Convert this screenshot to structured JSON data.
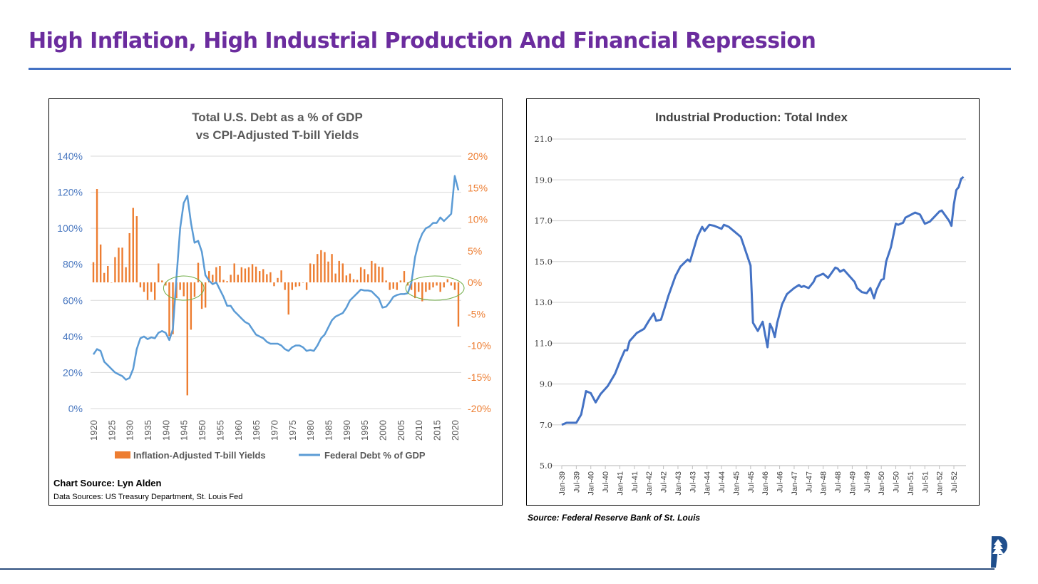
{
  "page": {
    "title": "High Inflation, High Industrial Production And Financial Repression",
    "source": "Source: Federal Reserve Bank of St. Louis",
    "logo_text": "P"
  },
  "colors": {
    "title": "#6b2c9e",
    "accent": "#4472c4",
    "bar": "#ed7d31",
    "debt_line": "#5b9bd5",
    "ip_line": "#4472c4",
    "ellipse": "#70ad47"
  },
  "chart_data": [
    {
      "type": "bar+line",
      "title": "Total U.S. Debt as a % of GDP",
      "subtitle": "vs CPI-Adjusted T-bill Yields",
      "left_axis": {
        "ticks": [
          "0%",
          "20%",
          "40%",
          "60%",
          "80%",
          "100%",
          "120%",
          "140%"
        ],
        "range": [
          0,
          140
        ]
      },
      "right_axis": {
        "ticks": [
          "-20%",
          "-15%",
          "-10%",
          "-5%",
          "0%",
          "5%",
          "10%",
          "15%",
          "20%"
        ],
        "range": [
          -20,
          20
        ]
      },
      "x_ticks": [
        "1920",
        "1925",
        "1930",
        "1935",
        "1940",
        "1945",
        "1950",
        "1955",
        "1960",
        "1965",
        "1970",
        "1975",
        "1980",
        "1985",
        "1990",
        "1995",
        "2000",
        "2005",
        "2010",
        "2015",
        "2020"
      ],
      "x_start": 1920,
      "legend": [
        "Inflation-Adjusted T-bill Yields",
        "Federal Debt % of GDP"
      ],
      "legend_position": "bottom",
      "series": [
        {
          "name": "Inflation-Adjusted T-bill Yields",
          "type": "bar",
          "axis": "right",
          "values": [
            3.2,
            14.8,
            6,
            1.5,
            2.6,
            0,
            4,
            5.5,
            5.5,
            2.4,
            7.8,
            11.8,
            10.5,
            -0.8,
            -1.5,
            -2.8,
            -1.5,
            -2.8,
            3,
            0.3,
            -0.5,
            -8.5,
            -8.2,
            -2.5,
            -1.2,
            -2.2,
            -17.9,
            -7.5,
            -2.3,
            3.1,
            -4.2,
            -4,
            1.8,
            1.2,
            2.4,
            2.6,
            0.4,
            0.2,
            1.2,
            3,
            1.2,
            2.4,
            2.2,
            2.4,
            2.9,
            2.5,
            1.8,
            2.1,
            1.3,
            1.6,
            -0.6,
            0.7,
            1.9,
            -1.2,
            -5.1,
            -1.2,
            -0.7,
            -0.6,
            0,
            -1.2,
            3,
            2.9,
            4.5,
            5.1,
            4.8,
            3.3,
            4.5,
            1.4,
            3.4,
            3,
            1.1,
            1.4,
            0.5,
            0.4,
            2.4,
            2.1,
            1.3,
            3.4,
            3,
            2.5,
            2.4,
            0.3,
            -1.2,
            -1,
            -1.2,
            0.3,
            1.8,
            -0.5,
            -1.2,
            -2.5,
            -1.5,
            -3,
            -1.5,
            -1.2,
            -0.8,
            -0.5,
            -1.5,
            -0.8,
            0.5,
            -0.5,
            -1.2,
            -7
          ]
        },
        {
          "name": "Federal Debt % of GDP",
          "type": "line",
          "axis": "left",
          "values": [
            30,
            33,
            32,
            26,
            24,
            22,
            20,
            19,
            18,
            16,
            17,
            22,
            33,
            39,
            40,
            38.5,
            39.5,
            39,
            42,
            43,
            42,
            38,
            44,
            73,
            100,
            114,
            118,
            103,
            92,
            93,
            87,
            74,
            71,
            69,
            70,
            66,
            62,
            57,
            57,
            54,
            52,
            50,
            48,
            47,
            44,
            41,
            40,
            39,
            37,
            36,
            36,
            36,
            35,
            33,
            32,
            34,
            35,
            35,
            34,
            32,
            32.5,
            32,
            35,
            39,
            41,
            45,
            49,
            51,
            52,
            53,
            56,
            60,
            62,
            64,
            66,
            65.5,
            65.5,
            65,
            63,
            61,
            56,
            56.5,
            59,
            62,
            63,
            63.5,
            63.5,
            64,
            70,
            84,
            92,
            97,
            100,
            101,
            103,
            103,
            106,
            104,
            106,
            108,
            129,
            121
          ]
        }
      ],
      "annotations": [
        {
          "type": "ellipse",
          "years": [
            1941,
            1949
          ]
        },
        {
          "type": "ellipse",
          "years": [
            2008,
            2021
          ]
        }
      ],
      "footer": {
        "chart_source": "Chart Source: Lyn Alden",
        "data_sources": "Data Sources: US Treasury Department, St. Louis Fed"
      }
    },
    {
      "type": "line",
      "title": "Industrial Production: Total Index",
      "y_ticks": [
        "5.0",
        "7.0",
        "9.0",
        "11.0",
        "13.0",
        "15.0",
        "17.0",
        "19.0",
        "21.0"
      ],
      "ylim": [
        5,
        21
      ],
      "x_ticks": [
        "Jan-39",
        "Jul-39",
        "Jan-40",
        "Jul-40",
        "Jan-41",
        "Jul-41",
        "Jan-42",
        "Jul-42",
        "Jan-43",
        "Jul-43",
        "Jan-44",
        "Jul-44",
        "Jan-45",
        "Jul-45",
        "Jan-46",
        "Jul-46",
        "Jan-47",
        "Jul-47",
        "Jan-48",
        "Jul-48",
        "Jan-49",
        "Jul-49",
        "Jan-50",
        "Jul-50",
        "Jan-51",
        "Jul-51",
        "Jan-52",
        "Jul-52"
      ],
      "x_unit": "months since Jan-39",
      "x_max": 167,
      "points": [
        [
          0,
          7.0
        ],
        [
          2,
          7.1
        ],
        [
          4,
          7.1
        ],
        [
          6,
          7.1
        ],
        [
          8,
          7.5
        ],
        [
          10,
          8.65
        ],
        [
          12,
          8.55
        ],
        [
          14,
          8.1
        ],
        [
          16,
          8.5
        ],
        [
          19,
          8.9
        ],
        [
          22,
          9.5
        ],
        [
          24,
          10.1
        ],
        [
          26,
          10.65
        ],
        [
          27,
          10.65
        ],
        [
          28,
          11.1
        ],
        [
          31,
          11.5
        ],
        [
          34,
          11.7
        ],
        [
          36,
          12.1
        ],
        [
          38,
          12.45
        ],
        [
          39,
          12.1
        ],
        [
          41,
          12.15
        ],
        [
          44,
          13.3
        ],
        [
          47,
          14.3
        ],
        [
          49,
          14.75
        ],
        [
          52,
          15.1
        ],
        [
          53,
          15.0
        ],
        [
          56,
          16.2
        ],
        [
          58,
          16.7
        ],
        [
          59,
          16.5
        ],
        [
          61,
          16.8
        ],
        [
          63,
          16.75
        ],
        [
          66,
          16.6
        ],
        [
          67,
          16.8
        ],
        [
          69,
          16.7
        ],
        [
          71,
          16.5
        ],
        [
          73,
          16.3
        ],
        [
          74,
          16.2
        ],
        [
          76,
          15.5
        ],
        [
          78,
          14.8
        ],
        [
          79,
          12.0
        ],
        [
          81,
          11.6
        ],
        [
          83,
          12.05
        ],
        [
          85,
          10.8
        ],
        [
          86,
          11.95
        ],
        [
          87,
          11.7
        ],
        [
          88,
          11.3
        ],
        [
          89,
          12.0
        ],
        [
          91,
          12.9
        ],
        [
          93,
          13.4
        ],
        [
          96,
          13.7
        ],
        [
          98,
          13.85
        ],
        [
          99,
          13.75
        ],
        [
          100,
          13.8
        ],
        [
          102,
          13.7
        ],
        [
          104,
          14.0
        ],
        [
          105,
          14.25
        ],
        [
          108,
          14.4
        ],
        [
          110,
          14.2
        ],
        [
          113,
          14.7
        ],
        [
          114,
          14.65
        ],
        [
          115,
          14.5
        ],
        [
          116.5,
          14.6
        ],
        [
          121,
          14.0
        ],
        [
          122,
          13.7
        ],
        [
          124,
          13.5
        ],
        [
          126,
          13.45
        ],
        [
          127.5,
          13.7
        ],
        [
          129,
          13.2
        ],
        [
          130,
          13.6
        ],
        [
          132,
          14.1
        ],
        [
          133,
          14.15
        ],
        [
          134,
          15.0
        ],
        [
          136,
          15.7
        ],
        [
          138,
          16.85
        ],
        [
          139,
          16.8
        ],
        [
          141,
          16.9
        ],
        [
          142,
          17.15
        ],
        [
          146,
          17.4
        ],
        [
          148,
          17.3
        ],
        [
          150,
          16.85
        ],
        [
          152,
          16.95
        ],
        [
          154,
          17.2
        ],
        [
          156,
          17.45
        ],
        [
          157,
          17.5
        ],
        [
          160,
          17.0
        ],
        [
          161,
          16.75
        ],
        [
          162,
          17.8
        ],
        [
          163,
          18.5
        ],
        [
          164,
          18.65
        ],
        [
          165,
          19.05
        ],
        [
          166,
          19.15
        ]
      ]
    }
  ]
}
